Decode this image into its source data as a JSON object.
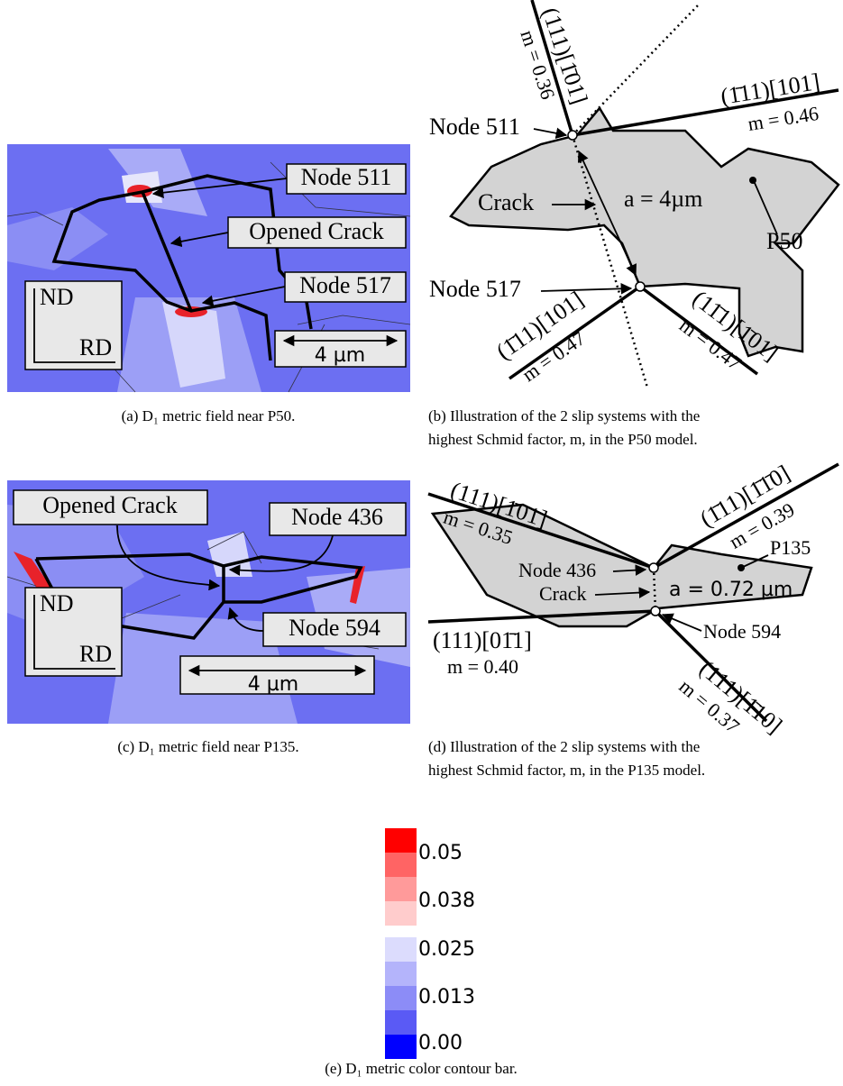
{
  "panel_a": {
    "labels": [
      "Node 511",
      "Opened Crack",
      "Node 517",
      "ND",
      "RD",
      "4 µm"
    ],
    "caption": "(a) D₁ metric field near P50."
  },
  "panel_b": {
    "labels": [
      "Node 511",
      "Node 517",
      "Crack",
      "a = 4µm",
      "P50",
      "(111)[1̄01]",
      "m = 0.36",
      "(1̄11)[101]",
      "m = 0.46",
      "(1̄11)[101]",
      "m = 0.47",
      "(11̄1)[1̄01]",
      "m = 0.47"
    ],
    "caption": [
      "(b) Illustration of the 2 slip systems with the",
      "highest Schmid factor, m, in the P50 model."
    ]
  },
  "panel_c": {
    "labels": [
      "Opened Crack",
      "Node 436",
      "Node 594",
      "ND",
      "RD",
      "4 µm"
    ],
    "caption": "(c) D₁ metric field near P135."
  },
  "panel_d": {
    "labels": [
      "(111)[1̄01]",
      "m = 0.35",
      "(1̄11)[1̄1̄0]",
      "m = 0.39",
      "P135",
      "Node 436",
      "Crack",
      "a = 0.72 µm",
      "(111)[01̄1]",
      "m = 0.40",
      "Node 594",
      "(111)[1̄10]",
      "m = 0.37"
    ],
    "caption": [
      "(d) Illustration of the 2 slip systems with the",
      "highest Schmid factor, m, in the P135 model."
    ]
  },
  "colorbar": {
    "labels": [
      "0.05",
      "0.038",
      "0.025",
      "0.013",
      "0.00"
    ],
    "caption": "(e) D₁ metric color contour bar."
  }
}
